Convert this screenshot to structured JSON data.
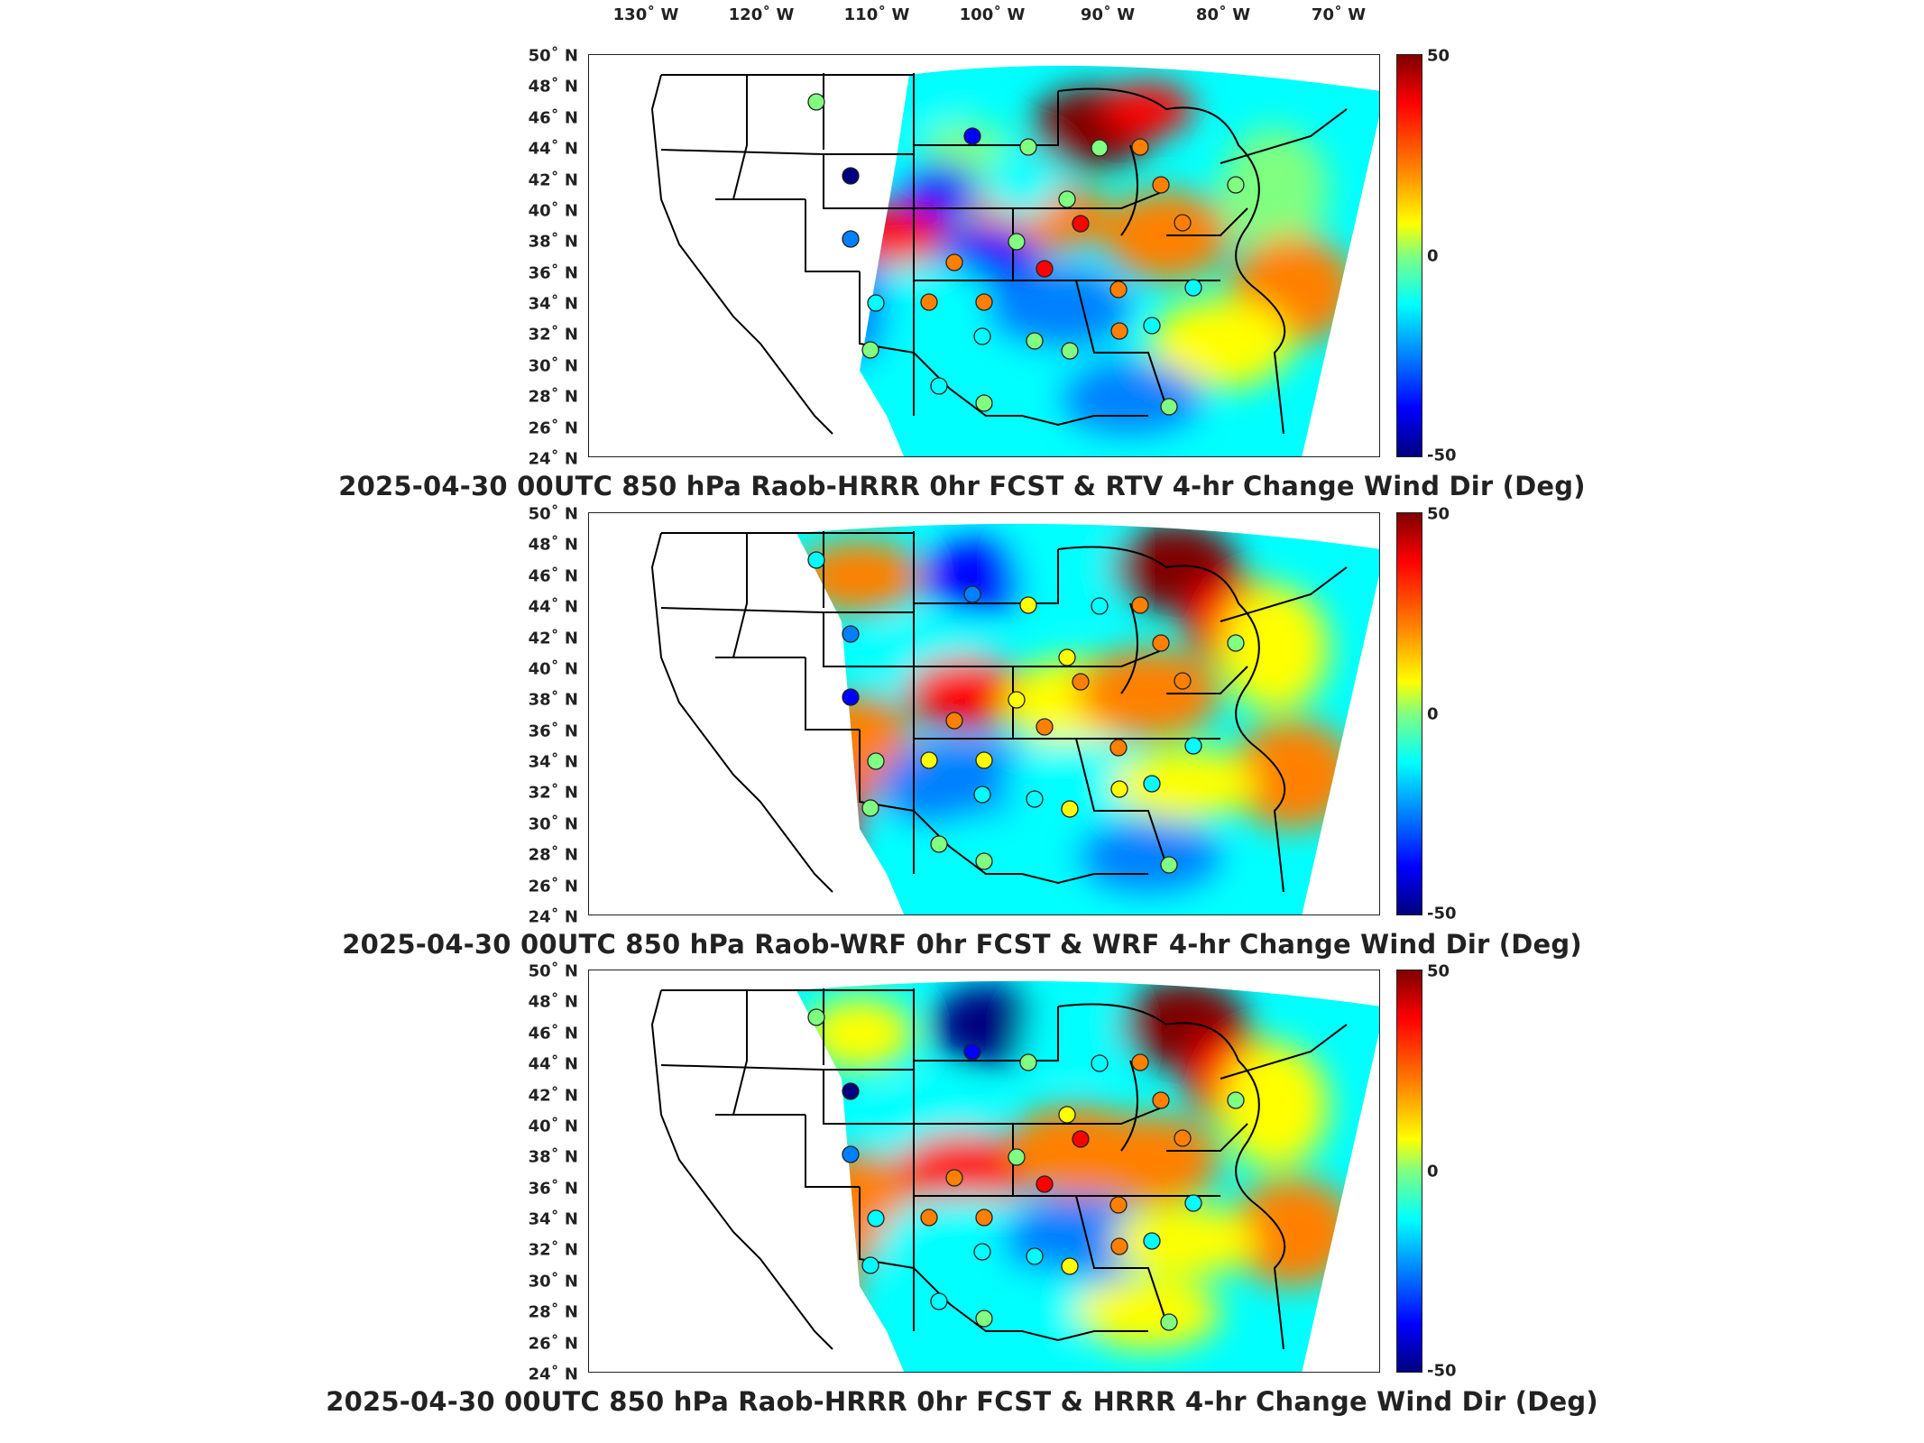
{
  "longitude_labels": [
    {
      "text": "130˚ W",
      "lon": -130
    },
    {
      "text": "120˚ W",
      "lon": -120
    },
    {
      "text": "110˚ W",
      "lon": -110
    },
    {
      "text": "100˚ W",
      "lon": -100
    },
    {
      "text": "90˚ W",
      "lon": -90
    },
    {
      "text": "80˚ W",
      "lon": -80
    },
    {
      "text": "70˚ W",
      "lon": -70
    }
  ],
  "latitude_labels": [
    "50˚ N",
    "48˚ N",
    "46˚ N",
    "44˚ N",
    "42˚ N",
    "40˚ N",
    "38˚ N",
    "36˚ N",
    "34˚ N",
    "32˚ N",
    "30˚ N",
    "28˚ N",
    "26˚ N",
    "24˚ N"
  ],
  "colorbar": {
    "max_label": "50",
    "mid_label": "0",
    "min_label": "-50",
    "range": [
      -50,
      50
    ],
    "colormap": "jet"
  },
  "panels": [
    {
      "title": "2025-04-30 00UTC 850 hPa Raob-HRRR 0hr FCST & RTV 4-hr Change Wind Dir (Deg)"
    },
    {
      "title": "2025-04-30 00UTC 850 hPa Raob-WRF 0hr FCST & WRF 4-hr Change Wind Dir (Deg)"
    },
    {
      "title": "2025-04-30 00UTC 850 hPa Raob-HRRR 0hr FCST & HRRR 4-hr Change Wind Dir (Deg)"
    }
  ],
  "colors": {
    "dark_red": "#7f0000",
    "red": "#ff0000",
    "orange": "#ff8000",
    "yellow": "#ffff00",
    "green": "#80ff80",
    "cyan": "#00ffff",
    "light_blue": "#0080ff",
    "blue": "#0000ff",
    "dark_blue": "#00007f"
  }
}
